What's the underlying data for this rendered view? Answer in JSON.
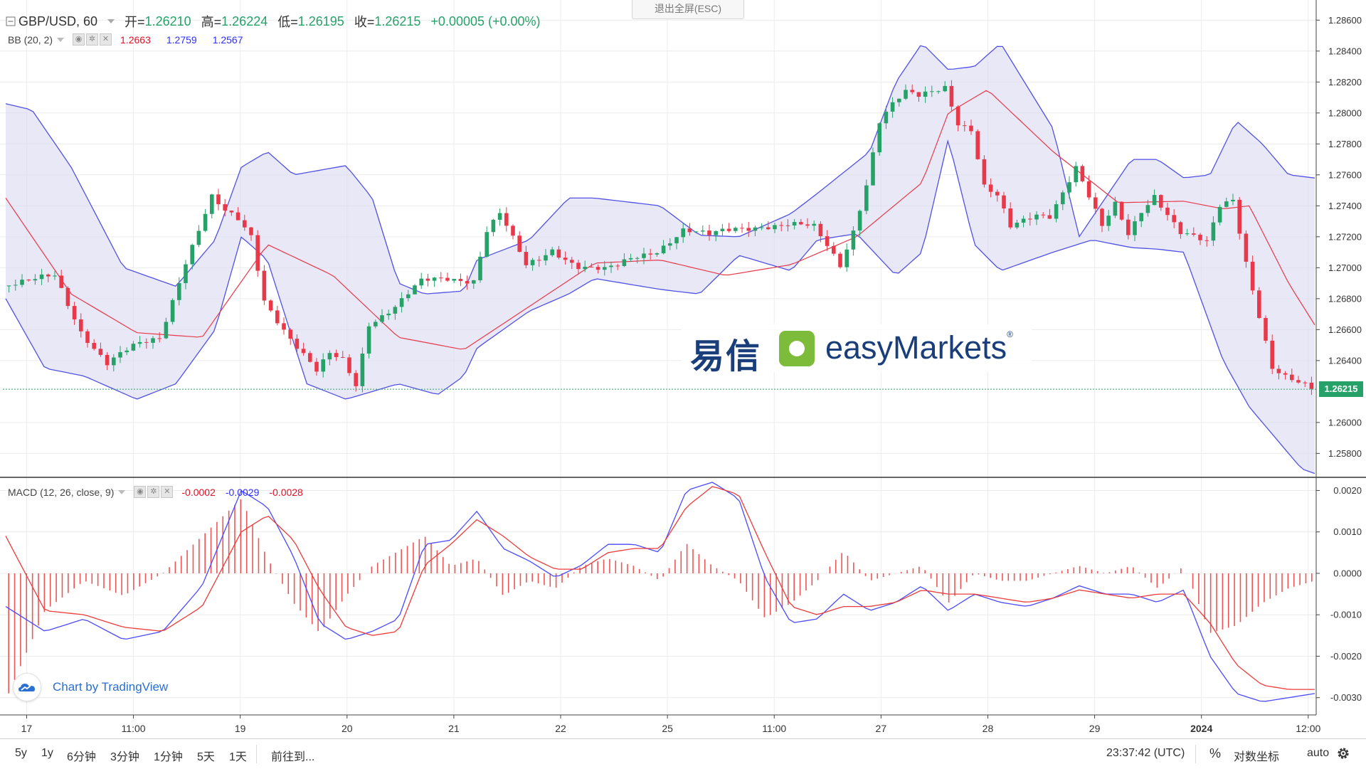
{
  "esc_button": "退出全屏(ESC)",
  "main_legend": {
    "symbol": "GBP/USD, 60",
    "ohlc": [
      {
        "key": "开=",
        "value": "1.26210"
      },
      {
        "key": "高=",
        "value": "1.26224"
      },
      {
        "key": "低=",
        "value": "1.26195"
      },
      {
        "key": "收=",
        "value": "1.26215"
      }
    ],
    "change": "+0.00005 (+0.00%)"
  },
  "bb_legend": {
    "name": "BB (20, 2)",
    "values": [
      "1.2663",
      "1.2759",
      "1.2567"
    ]
  },
  "macd_legend": {
    "name": "MACD (12, 26, close, 9)",
    "values": [
      "-0.0002",
      "-0.0029",
      "-0.0028"
    ]
  },
  "watermark": {
    "cn": "易信",
    "en": "easyMarkets",
    "reg": "®"
  },
  "tradingview_badge": "Chart by TradingView",
  "last_price_tag": "1.26215",
  "bottom_bar": {
    "ranges": [
      "5y",
      "1y",
      "6分钟",
      "3分钟",
      "1分钟",
      "5天",
      "1天"
    ],
    "goto": "前往到...",
    "clock": "23:37:42 (UTC)",
    "percent": "%",
    "log_scale": "对数坐标",
    "auto": "auto"
  },
  "icons": {
    "collapse": "collapse-square-icon",
    "settings": "gear-icon",
    "eye": "eye-icon",
    "close": "close-icon",
    "tradingview": "tradingview-cloud-icon"
  },
  "colors": {
    "up": "#26a269",
    "down": "#e8394a",
    "bb_band": "#5151e6",
    "bb_fill": "#dcdcf2",
    "bb_basis": "#e8394a",
    "macd_line": "#4a4aff",
    "signal_line": "#ee3b3b",
    "histogram": "#ee5555",
    "accent": "#2a6fd1"
  },
  "chart_data": [
    {
      "type": "candlestick",
      "title": "GBP/USD, 60",
      "x_ticks": [
        "17",
        "11:00",
        "19",
        "20",
        "21",
        "22",
        "25",
        "11:00",
        "27",
        "28",
        "29",
        "2024",
        "12:00"
      ],
      "y_ticks": [
        "1.28600",
        "1.28400",
        "1.28200",
        "1.28000",
        "1.27800",
        "1.27600",
        "1.27400",
        "1.27200",
        "1.27000",
        "1.26800",
        "1.26600",
        "1.26400",
        "1.26000",
        "1.25800"
      ],
      "ylim": [
        1.2565,
        1.2873
      ],
      "series": [
        {
          "name": "BB (20, 2)",
          "role": "upper",
          "x": [
            0,
            0.02,
            0.05,
            0.09,
            0.13,
            0.16,
            0.18,
            0.2,
            0.22,
            0.26,
            0.28,
            0.3,
            0.32,
            0.35,
            0.36,
            0.4,
            0.43,
            0.45,
            0.5,
            0.53,
            0.56,
            0.6,
            0.62,
            0.66,
            0.68,
            0.7,
            0.72,
            0.74,
            0.76,
            0.8,
            0.82,
            0.84,
            0.86,
            0.88,
            0.9,
            0.92,
            0.94,
            0.96,
            0.98,
            1
          ],
          "values": [
            1.2806,
            1.2802,
            1.2765,
            1.27,
            1.2688,
            1.2718,
            1.2765,
            1.2775,
            1.276,
            1.2766,
            1.2745,
            1.269,
            1.2683,
            1.2685,
            1.2705,
            1.2718,
            1.2745,
            1.2745,
            1.274,
            1.2721,
            1.272,
            1.2735,
            1.2748,
            1.2775,
            1.282,
            1.2845,
            1.2828,
            1.283,
            1.2845,
            1.279,
            1.272,
            1.2745,
            1.277,
            1.277,
            1.2758,
            1.276,
            1.2795,
            1.278,
            1.276,
            1.2758
          ]
        },
        {
          "name": "BB (20, 2)",
          "role": "basis",
          "x": [
            0,
            0.05,
            0.1,
            0.15,
            0.2,
            0.25,
            0.3,
            0.35,
            0.4,
            0.45,
            0.5,
            0.55,
            0.6,
            0.65,
            0.7,
            0.72,
            0.75,
            0.8,
            0.85,
            0.9,
            0.93,
            0.95,
            0.98,
            1
          ],
          "values": [
            1.2745,
            1.2683,
            1.2658,
            1.2655,
            1.2715,
            1.2695,
            1.2655,
            1.2647,
            1.2675,
            1.2703,
            1.2705,
            1.2695,
            1.2702,
            1.272,
            1.2755,
            1.28,
            1.2815,
            1.2775,
            1.2742,
            1.2743,
            1.2738,
            1.274,
            1.269,
            1.2663
          ]
        },
        {
          "name": "BB (20, 2)",
          "role": "lower",
          "x": [
            0,
            0.03,
            0.06,
            0.1,
            0.13,
            0.16,
            0.18,
            0.2,
            0.23,
            0.26,
            0.3,
            0.33,
            0.35,
            0.36,
            0.4,
            0.43,
            0.45,
            0.5,
            0.53,
            0.56,
            0.6,
            0.62,
            0.65,
            0.68,
            0.7,
            0.72,
            0.74,
            0.76,
            0.8,
            0.83,
            0.86,
            0.88,
            0.9,
            0.93,
            0.95,
            0.97,
            0.99,
            1
          ],
          "values": [
            1.268,
            1.2635,
            1.263,
            1.2615,
            1.2625,
            1.266,
            1.272,
            1.2705,
            1.2625,
            1.2615,
            1.2625,
            1.2618,
            1.263,
            1.2648,
            1.2672,
            1.2683,
            1.2693,
            1.2686,
            1.2683,
            1.2708,
            1.2698,
            1.2718,
            1.2722,
            1.2695,
            1.271,
            1.2783,
            1.2715,
            1.2698,
            1.271,
            1.2718,
            1.2713,
            1.2712,
            1.271,
            1.264,
            1.261,
            1.259,
            1.257,
            1.2567
          ]
        },
        {
          "name": "GBP/USD",
          "role": "close",
          "x": [
            0,
            0.02,
            0.04,
            0.06,
            0.08,
            0.1,
            0.12,
            0.14,
            0.16,
            0.17,
            0.18,
            0.19,
            0.2,
            0.22,
            0.24,
            0.25,
            0.26,
            0.27,
            0.28,
            0.3,
            0.32,
            0.34,
            0.36,
            0.37,
            0.38,
            0.4,
            0.41,
            0.42,
            0.44,
            0.46,
            0.47,
            0.48,
            0.5,
            0.52,
            0.54,
            0.56,
            0.58,
            0.6,
            0.62,
            0.64,
            0.65,
            0.66,
            0.67,
            0.68,
            0.69,
            0.7,
            0.72,
            0.73,
            0.74,
            0.75,
            0.76,
            0.77,
            0.78,
            0.79,
            0.8,
            0.82,
            0.83,
            0.84,
            0.85,
            0.86,
            0.87,
            0.88,
            0.9,
            0.92,
            0.93,
            0.94,
            0.95,
            0.96,
            0.97,
            0.98,
            0.99,
            1
          ],
          "values": [
            1.2688,
            1.269,
            1.2695,
            1.266,
            1.2638,
            1.2648,
            1.2655,
            1.2705,
            1.2745,
            1.2735,
            1.273,
            1.272,
            1.268,
            1.2655,
            1.2632,
            1.2643,
            1.264,
            1.2625,
            1.2665,
            1.2675,
            1.269,
            1.2693,
            1.2693,
            1.2725,
            1.2735,
            1.27,
            1.2705,
            1.2712,
            1.2702,
            1.2698,
            1.27,
            1.2705,
            1.2712,
            1.2725,
            1.272,
            1.2725,
            1.2728,
            1.2728,
            1.2725,
            1.2702,
            1.2725,
            1.2755,
            1.2795,
            1.2805,
            1.2812,
            1.281,
            1.2818,
            1.2795,
            1.279,
            1.2752,
            1.2745,
            1.2725,
            1.273,
            1.2735,
            1.2735,
            1.2765,
            1.2745,
            1.2725,
            1.274,
            1.2722,
            1.2738,
            1.2748,
            1.2722,
            1.2715,
            1.274,
            1.2745,
            1.2705,
            1.267,
            1.2635,
            1.2628,
            1.2624,
            1.26215
          ]
        }
      ]
    },
    {
      "type": "line",
      "title": "MACD (12, 26, close, 9)",
      "y_ticks": [
        "0.0020",
        "0.0010",
        "0.0000",
        "-0.0010",
        "-0.0020",
        "-0.0030"
      ],
      "ylim": [
        -0.0034,
        0.0023
      ],
      "series": [
        {
          "name": "MACD",
          "x": [
            0,
            0.03,
            0.06,
            0.09,
            0.12,
            0.15,
            0.18,
            0.2,
            0.22,
            0.24,
            0.26,
            0.28,
            0.3,
            0.32,
            0.34,
            0.36,
            0.38,
            0.4,
            0.42,
            0.44,
            0.46,
            0.48,
            0.5,
            0.52,
            0.54,
            0.56,
            0.58,
            0.6,
            0.62,
            0.64,
            0.66,
            0.68,
            0.7,
            0.72,
            0.74,
            0.76,
            0.78,
            0.8,
            0.82,
            0.84,
            0.86,
            0.88,
            0.9,
            0.92,
            0.94,
            0.96,
            0.98,
            1
          ],
          "values": [
            -0.0008,
            -0.0014,
            -0.0011,
            -0.0016,
            -0.0014,
            -0.0003,
            0.002,
            0.0016,
            0.0004,
            -0.0012,
            -0.0016,
            -0.0014,
            -0.0011,
            0.0007,
            0.0008,
            0.0015,
            0.0006,
            0.0003,
            -0.0001,
            0.0002,
            0.0007,
            0.0007,
            0.0005,
            0.002,
            0.0022,
            0.0018,
            -0.0001,
            -0.0012,
            -0.0011,
            -0.0005,
            -0.0009,
            -0.0007,
            -0.0003,
            -0.0009,
            -0.0005,
            -0.0007,
            -0.0008,
            -0.0006,
            -0.0003,
            -0.0005,
            -0.0005,
            -0.0007,
            -0.0004,
            -0.002,
            -0.0029,
            -0.0031,
            -0.003,
            -0.0029
          ]
        },
        {
          "name": "Signal",
          "x": [
            0,
            0.03,
            0.06,
            0.09,
            0.12,
            0.15,
            0.18,
            0.2,
            0.22,
            0.24,
            0.26,
            0.28,
            0.3,
            0.32,
            0.34,
            0.36,
            0.38,
            0.4,
            0.42,
            0.44,
            0.46,
            0.48,
            0.5,
            0.52,
            0.54,
            0.56,
            0.58,
            0.6,
            0.62,
            0.64,
            0.66,
            0.68,
            0.7,
            0.72,
            0.74,
            0.76,
            0.78,
            0.8,
            0.82,
            0.84,
            0.86,
            0.88,
            0.9,
            0.92,
            0.94,
            0.96,
            0.98,
            1
          ],
          "values": [
            0.0009,
            -0.0009,
            -0.001,
            -0.0013,
            -0.0014,
            -0.0008,
            0.001,
            0.0014,
            0.0008,
            -0.0004,
            -0.0013,
            -0.0015,
            -0.0014,
            0.0002,
            0.0007,
            0.0013,
            0.0009,
            0.0004,
            0.0001,
            0.0001,
            0.0005,
            0.0006,
            0.0006,
            0.0016,
            0.0021,
            0.0019,
            0.0005,
            -0.0008,
            -0.001,
            -0.0008,
            -0.0008,
            -0.0007,
            -0.0004,
            -0.0005,
            -0.0005,
            -0.0006,
            -0.0007,
            -0.0006,
            -0.0004,
            -0.0005,
            -0.0006,
            -0.0005,
            -0.0005,
            -0.0012,
            -0.0022,
            -0.0027,
            -0.0028,
            -0.0028
          ]
        }
      ]
    }
  ]
}
